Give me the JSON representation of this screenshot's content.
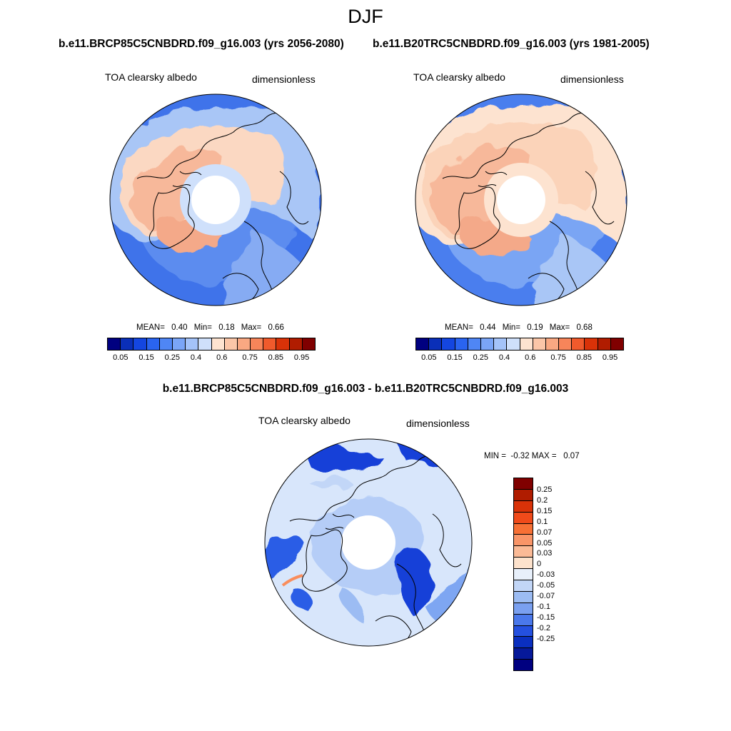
{
  "header": {
    "season": "DJF"
  },
  "panels": [
    {
      "case": "b.e11.BRCP85C5CNBDRD.f09_g16.003 (yrs 2056-2080)",
      "variable": "TOA clearsky albedo",
      "units": "dimensionless",
      "stats": {
        "mean_label": "MEAN=",
        "mean": "0.40",
        "min_label": "Min=",
        "min": "0.18",
        "max_label": "Max=",
        "max": "0.66"
      }
    },
    {
      "case": "b.e11.B20TRC5CNBDRD.f09_g16.003 (yrs 1981-2005)",
      "variable": "TOA clearsky albedo",
      "units": "dimensionless",
      "stats": {
        "mean_label": "MEAN=",
        "mean": "0.44",
        "min_label": "Min=",
        "min": "0.19",
        "max_label": "Max=",
        "max": "0.68"
      }
    }
  ],
  "abs_colorbar": {
    "colors": [
      "#000080",
      "#0a2fb8",
      "#1446e0",
      "#2a64f0",
      "#4f86f5",
      "#7aa5f7",
      "#a4c3f9",
      "#cfe0fb",
      "#fde3d0",
      "#fbc6a8",
      "#f9a882",
      "#f7855a",
      "#f05a2c",
      "#d93208",
      "#b01c00",
      "#800000"
    ],
    "tick_labels": [
      "0.05",
      "0.15",
      "0.25",
      "0.4",
      "0.6",
      "0.75",
      "0.85",
      "0.95"
    ]
  },
  "difference": {
    "title": "b.e11.BRCP85C5CNBDRD.f09_g16.003 - b.e11.B20TRC5CNBDRD.f09_g16.003",
    "variable": "TOA clearsky albedo",
    "units": "dimensionless",
    "minmax": "MIN =  -0.32 MAX =   0.07",
    "colorbar": {
      "colors_top_to_bottom": [
        "#800000",
        "#b01c00",
        "#d93208",
        "#f04a1a",
        "#f77035",
        "#f99568",
        "#fbba96",
        "#fde2cc",
        "#e8f0fb",
        "#c2d6f7",
        "#9cbcf3",
        "#7aa0f0",
        "#4a78eb",
        "#2450e0",
        "#0a2fc0",
        "#06199a",
        "#000080"
      ],
      "labels": [
        "0.25",
        "0.2",
        "0.15",
        "0.1",
        "0.07",
        "0.05",
        "0.03",
        "0",
        "-0.03",
        "-0.05",
        "-0.07",
        "-0.1",
        "-0.15",
        "-0.2",
        "-0.25"
      ]
    }
  }
}
